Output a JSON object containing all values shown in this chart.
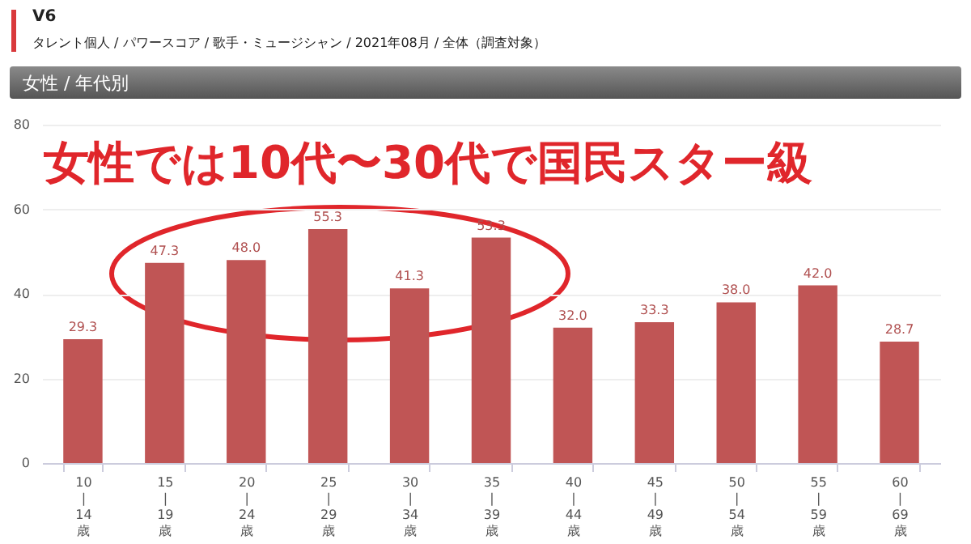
{
  "chart_data": {
    "type": "bar",
    "title": "V6",
    "subtitle": "タレント個人 / パワースコア / 歌手・ミュージシャン / 2021年08月 / 全体（調査対象）",
    "annotations": [
      "女性 / 年代別",
      "女性では10代〜30代で国民スター級"
    ],
    "categories": [
      "10\n|\n14\n歳",
      "15\n|\n19\n歳",
      "20\n|\n24\n歳",
      "25\n|\n29\n歳",
      "30\n|\n34\n歳",
      "35\n|\n39\n歳",
      "40\n|\n44\n歳",
      "45\n|\n49\n歳",
      "50\n|\n54\n歳",
      "55\n|\n59\n歳",
      "60\n|\n69\n歳"
    ],
    "values": [
      29.3,
      47.3,
      48.0,
      55.3,
      41.3,
      53.3,
      32.0,
      33.3,
      38.0,
      42.0,
      28.7
    ],
    "value_labels": [
      "29.3",
      "47.3",
      "48.0",
      "55.3",
      "41.3",
      "53.3",
      "32.0",
      "33.3",
      "38.0",
      "42.0",
      "28.7"
    ],
    "color": "#c05555",
    "ylim": [
      0,
      80
    ],
    "yticks": [
      0,
      20,
      40,
      60,
      80
    ],
    "grid": "y"
  }
}
